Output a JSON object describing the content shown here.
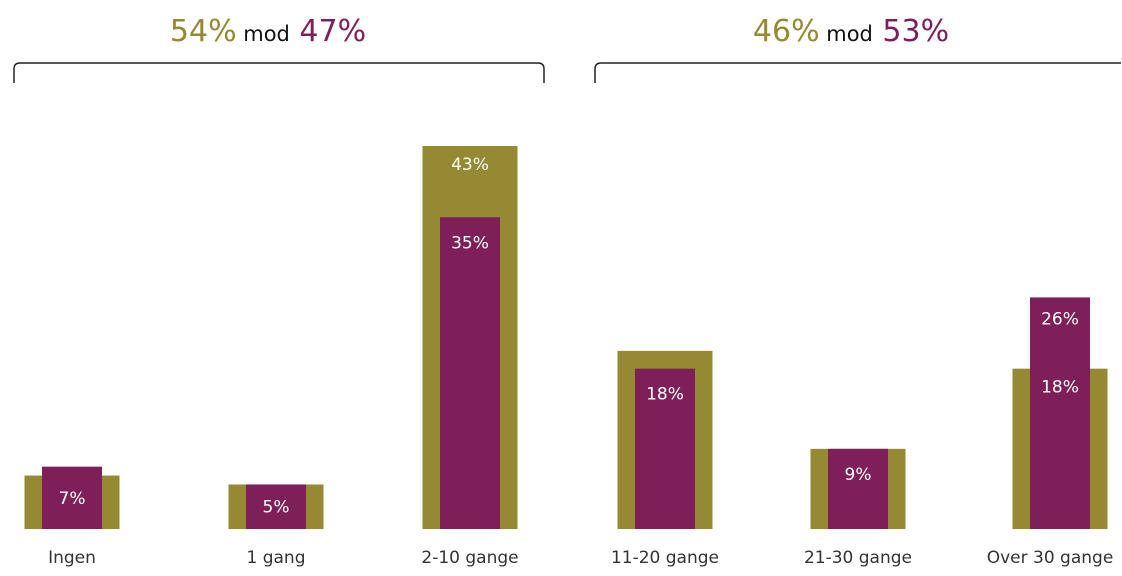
{
  "colors": {
    "olive": "#958933",
    "plum": "#7f1f5a",
    "text": "#333333",
    "bracket": "#222222",
    "label_inside": "#ffffff"
  },
  "groups": [
    {
      "label_a": "54%",
      "mid": "mod",
      "label_b": "47%",
      "category_span": [
        0,
        2
      ]
    },
    {
      "label_a": "46%",
      "mid": "mod",
      "label_b": "53%",
      "category_span": [
        3,
        5
      ]
    }
  ],
  "chart_data": {
    "type": "bar",
    "title": "",
    "xlabel": "",
    "ylabel": "",
    "categories": [
      "Ingen",
      "1 gang",
      "2-10 gange",
      "11-20 gange",
      "21-30 gange",
      "Over 30 gange"
    ],
    "series": [
      {
        "values": [
          6,
          5,
          43,
          20,
          9,
          18
        ],
        "value_labels": [
          "",
          "",
          "43%",
          "",
          "",
          "18%"
        ],
        "color": "olive"
      },
      {
        "values": [
          7,
          5,
          35,
          18,
          9,
          26
        ],
        "value_labels": [
          "7%",
          "5%",
          "35%",
          "18%",
          "9%",
          "26%"
        ],
        "color": "plum"
      }
    ],
    "ylim": [
      0,
      43
    ],
    "grid": false,
    "legend": "none"
  }
}
